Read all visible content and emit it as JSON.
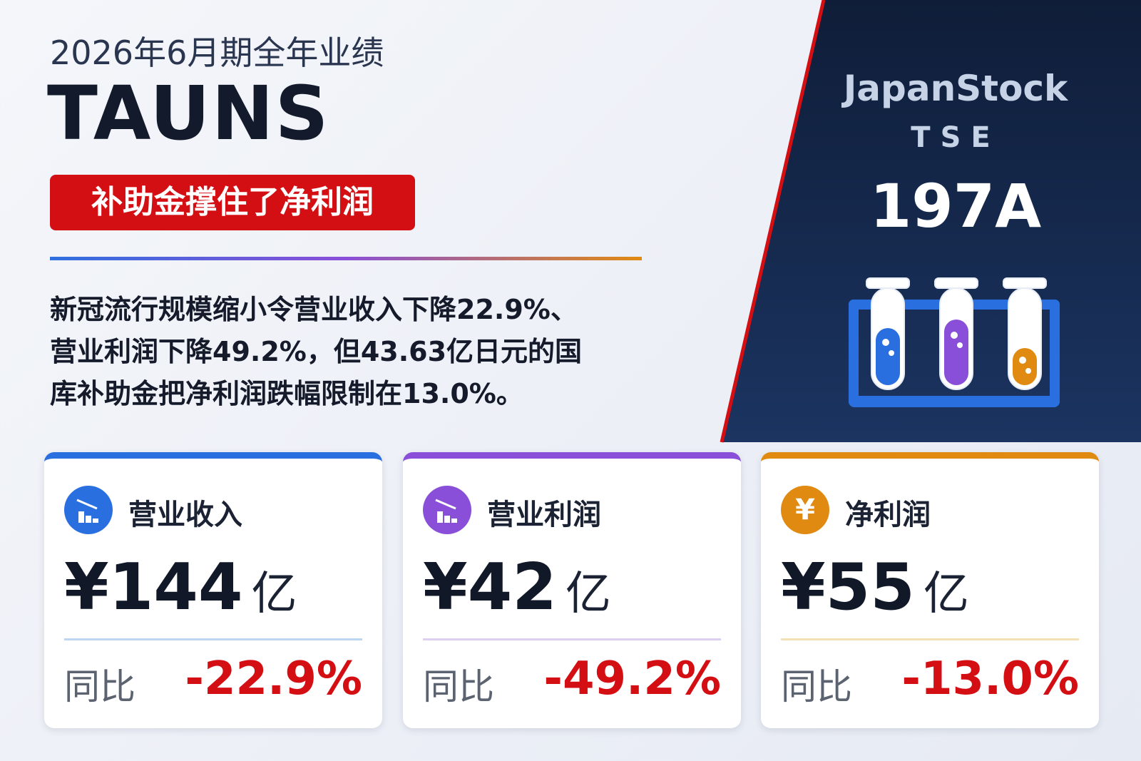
{
  "header": {
    "period": "2026年6月期全年业绩",
    "company": "TAUNS",
    "tag": "补助金撑住了净利润"
  },
  "summary": {
    "lines": [
      "新冠流行规模缩小令营业收入下降22.9%、",
      "营业利润下降49.2%，但43.63亿日元的国",
      "库补助金把净利润跌幅限制在13.0%。"
    ]
  },
  "badge": {
    "brand": "JapanStock",
    "exchange": "TSE",
    "code": "197A"
  },
  "cards": [
    {
      "label": "营业收入",
      "amount": "¥144",
      "unit": "亿",
      "compare": "同比",
      "change": "-22.9%"
    },
    {
      "label": "营业利润",
      "amount": "¥42",
      "unit": "亿",
      "compare": "同比",
      "change": "-49.2%"
    },
    {
      "label": "净利润",
      "icon": "¥",
      "amount": "¥55",
      "unit": "亿",
      "compare": "同比",
      "change": "-13.0%"
    }
  ]
}
